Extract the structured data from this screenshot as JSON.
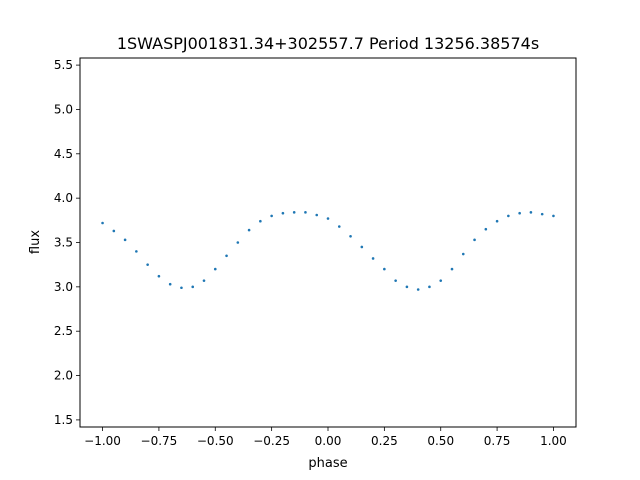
{
  "chart_data": {
    "type": "scatter",
    "title": "1SWASPJ001831.34+302557.7 Period 13256.38574s",
    "xlabel": "phase",
    "ylabel": "flux",
    "xlim": [
      -1.1,
      1.1
    ],
    "ylim": [
      1.42,
      5.58
    ],
    "xticks": [
      -1.0,
      -0.75,
      -0.5,
      -0.25,
      0.0,
      0.25,
      0.5,
      0.75,
      1.0
    ],
    "xtick_labels": [
      "−1.00",
      "−0.75",
      "−0.50",
      "−0.25",
      "0.00",
      "0.25",
      "0.50",
      "0.75",
      "1.00"
    ],
    "yticks": [
      1.5,
      2.0,
      2.5,
      3.0,
      3.5,
      4.0,
      4.5,
      5.0,
      5.5
    ],
    "ytick_labels": [
      "1.5",
      "2.0",
      "2.5",
      "3.0",
      "3.5",
      "4.0",
      "4.5",
      "5.0",
      "5.5"
    ],
    "grid": false,
    "legend": "none",
    "marker_color": "#1f77b4",
    "series": [
      {
        "x": [
          -1.0,
          -0.95,
          -0.9,
          -0.85,
          -0.8,
          -0.75,
          -0.7,
          -0.65,
          -0.6,
          -0.55,
          -0.5,
          -0.45,
          -0.4,
          -0.35,
          -0.3,
          -0.25,
          -0.2,
          -0.15,
          -0.1,
          -0.05,
          0.0,
          0.05,
          0.1,
          0.15,
          0.2,
          0.25,
          0.3,
          0.35,
          0.4,
          0.45,
          0.5,
          0.55,
          0.6,
          0.65,
          0.7,
          0.75,
          0.8,
          0.85,
          0.9,
          0.95,
          1.0
        ],
        "y": [
          3.72,
          3.63,
          3.53,
          3.4,
          3.25,
          3.12,
          3.03,
          2.99,
          3.0,
          3.07,
          3.2,
          3.35,
          3.5,
          3.64,
          3.74,
          3.8,
          3.83,
          3.84,
          3.84,
          3.81,
          3.77,
          3.68,
          3.57,
          3.45,
          3.32,
          3.2,
          3.07,
          3.0,
          2.97,
          3.0,
          3.07,
          3.2,
          3.37,
          3.53,
          3.65,
          3.74,
          3.8,
          3.83,
          3.84,
          3.82,
          3.8
        ]
      }
    ]
  }
}
